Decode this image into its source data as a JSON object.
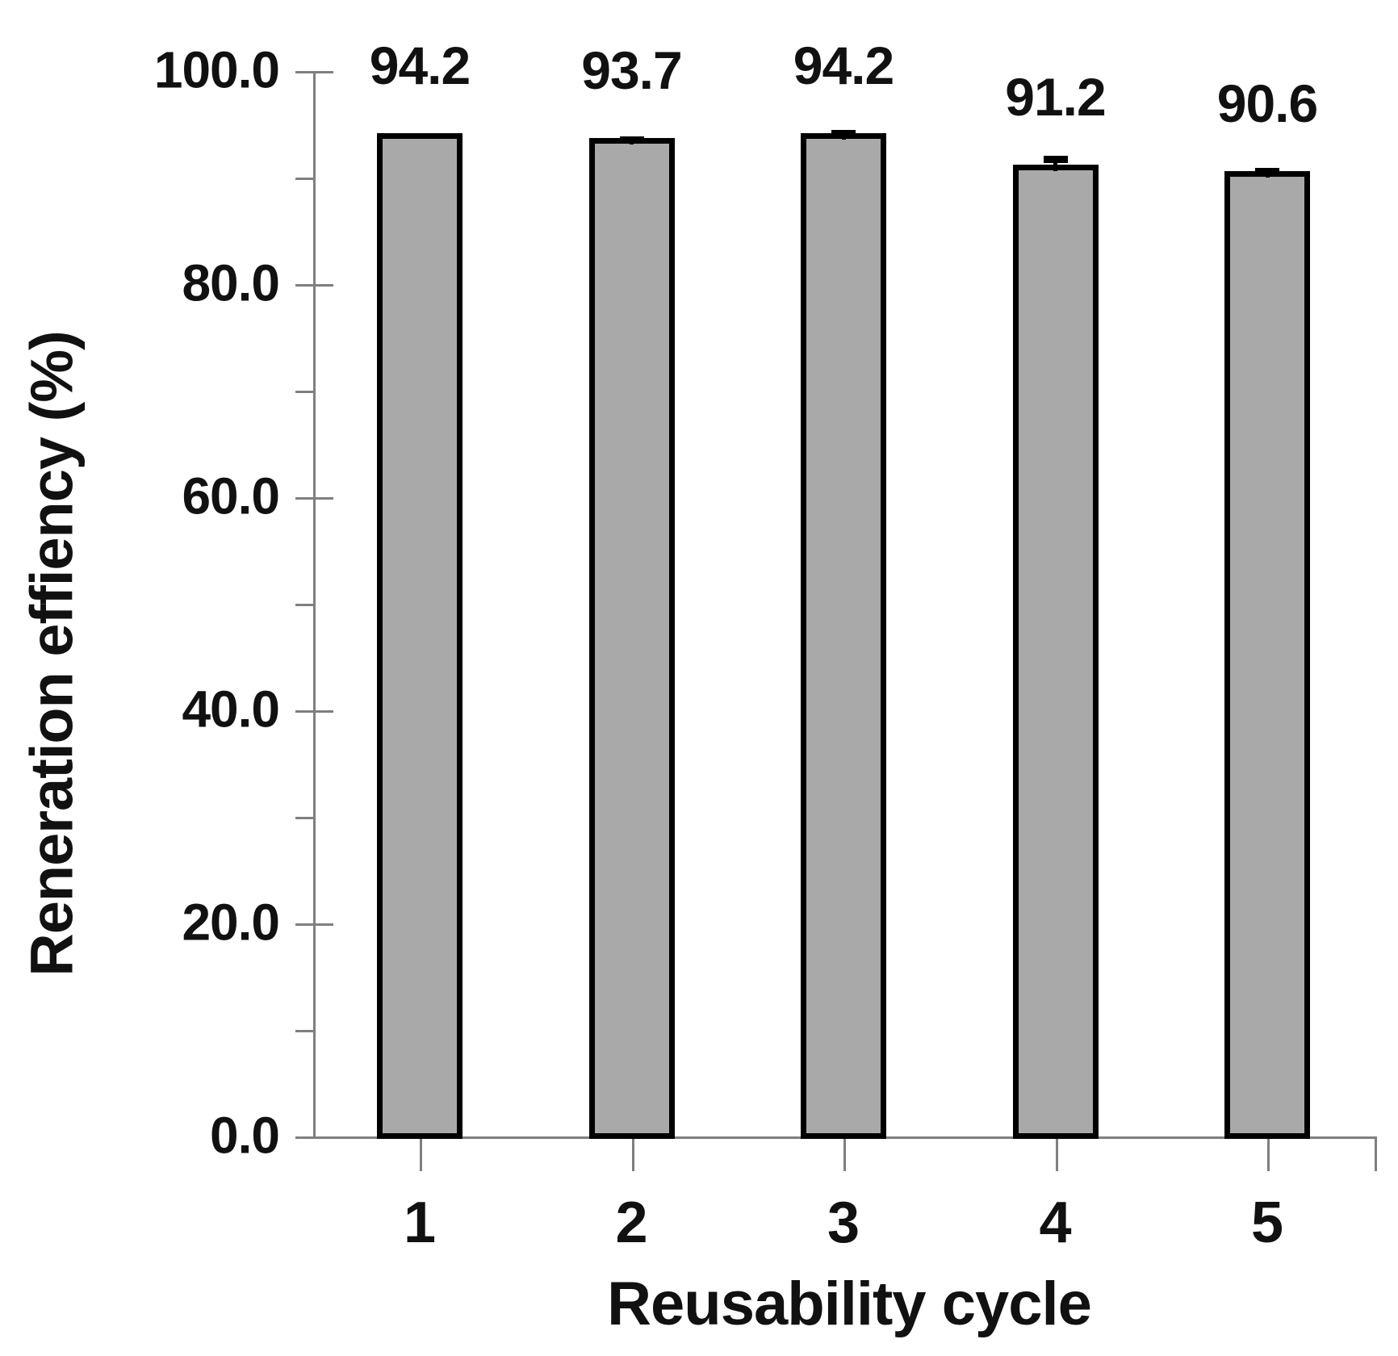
{
  "figure": {
    "background_color": "#ffffff",
    "text_color": "#111111"
  },
  "chart_data": {
    "type": "bar",
    "title": "",
    "categories": [
      "1",
      "2",
      "3",
      "4",
      "5"
    ],
    "values": [
      94.2,
      93.7,
      94.2,
      91.2,
      90.6
    ],
    "bar_value_labels": [
      "94.2",
      "93.7",
      "94.2",
      "91.2",
      "90.6"
    ],
    "error_whiskers": [
      0,
      0.2,
      0.3,
      0.85,
      0.3
    ],
    "xlabel": "Reusability cycle",
    "ylabel": "Reneration effiency (%)",
    "ylim": [
      0,
      100
    ],
    "yticks_major": [
      0,
      20,
      40,
      60,
      80,
      100
    ],
    "ytick_labels": [
      "0.0",
      "20.0",
      "40.0",
      "60.0",
      "80.0",
      "100.0"
    ],
    "yticks_minor": [
      10,
      30,
      50,
      70,
      90
    ],
    "grid": false,
    "legend_position": "none",
    "bar_fill_color": "#a9a9a9",
    "bar_border_color": "#000000",
    "axis_line_color": "#7f7f7f",
    "error_bar_color": "#000000"
  }
}
